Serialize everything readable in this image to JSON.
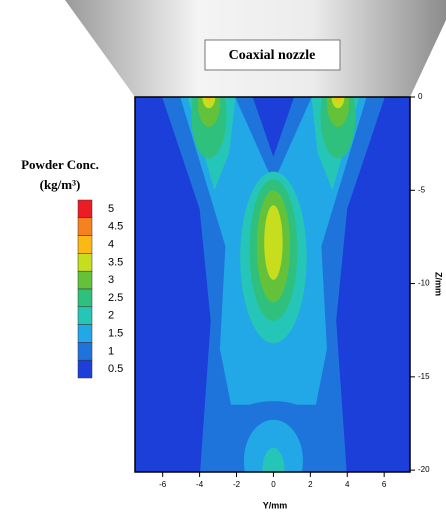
{
  "chart_data": {
    "type": "contour",
    "annotation": "Coaxial nozzle",
    "legend_title": "Powder Conc.",
    "legend_unit": "(kg/m³)",
    "levels": [
      5,
      4.5,
      4,
      3.5,
      3,
      2.5,
      2,
      1.5,
      1,
      0.5
    ],
    "colors": [
      "#ec1c24",
      "#f5821f",
      "#fdb913",
      "#c6de1e",
      "#64c23a",
      "#2ec07c",
      "#25c6b8",
      "#22a8e6",
      "#1f74dc",
      "#1b3fd8"
    ],
    "xlabel": "Y/mm",
    "ylabel": "Z/mm",
    "xlim": [
      -7.5,
      7.4
    ],
    "ylim": [
      -20.1,
      0
    ],
    "xticks": [
      -6,
      -4,
      -2,
      0,
      2,
      4,
      6
    ],
    "yticks": [
      0,
      -5,
      -10,
      -15,
      -20
    ]
  }
}
